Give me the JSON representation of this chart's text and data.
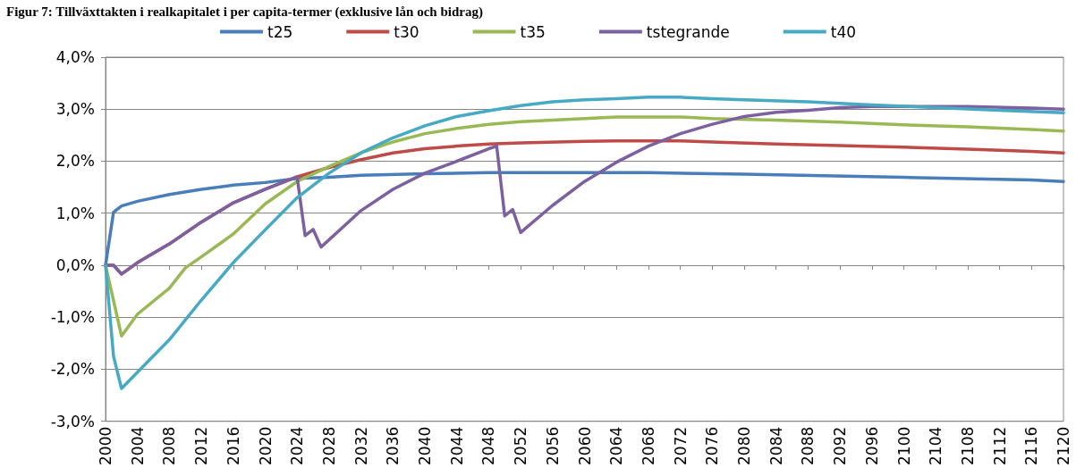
{
  "chart_data": {
    "type": "line",
    "title": "Figur 7: Tillväxttakten i realkapitalet i per capita-termer (exklusive lån och bidrag)",
    "xlim": [
      2000,
      2120
    ],
    "xticks": [
      2000,
      2004,
      2008,
      2012,
      2016,
      2020,
      2024,
      2028,
      2032,
      2036,
      2040,
      2044,
      2048,
      2052,
      2056,
      2060,
      2064,
      2068,
      2072,
      2076,
      2080,
      2084,
      2088,
      2092,
      2096,
      2100,
      2104,
      2108,
      2112,
      2116,
      2120
    ],
    "ylim": [
      -3,
      4
    ],
    "yticks": [
      {
        "value": -3,
        "label": "-3,0%"
      },
      {
        "value": -2,
        "label": "-2,0%"
      },
      {
        "value": -1,
        "label": "-1,0%"
      },
      {
        "value": 0,
        "label": "0,0%"
      },
      {
        "value": 1,
        "label": "1,0%"
      },
      {
        "value": 2,
        "label": "2,0%"
      },
      {
        "value": 3,
        "label": "3,0%"
      },
      {
        "value": 4,
        "label": "4,0%"
      }
    ],
    "grid": "y",
    "legend": "top",
    "marker": "none",
    "line_style": "solid",
    "series": [
      {
        "name": "t25",
        "color": "#4a7ebb",
        "x": [
          2000,
          2001,
          2002,
          2004,
          2008,
          2012,
          2016,
          2020,
          2024,
          2028,
          2032,
          2040,
          2048,
          2068,
          2080,
          2100,
          2116,
          2120
        ],
        "values": [
          0,
          1.02,
          1.14,
          1.23,
          1.36,
          1.46,
          1.54,
          1.59,
          1.67,
          1.69,
          1.73,
          1.76,
          1.78,
          1.78,
          1.75,
          1.69,
          1.64,
          1.61
        ]
      },
      {
        "name": "t30",
        "color": "#be4b48",
        "x": [
          2000,
          2001,
          2002,
          2004,
          2008,
          2012,
          2016,
          2020,
          2024,
          2028,
          2032,
          2036,
          2040,
          2044,
          2048,
          2052,
          2060,
          2064,
          2072,
          2076,
          2084,
          2092,
          2100,
          2108,
          2116,
          2120
        ],
        "values": [
          0,
          0,
          -0.17,
          0.05,
          0.41,
          0.83,
          1.2,
          1.46,
          1.7,
          1.88,
          2.03,
          2.16,
          2.24,
          2.29,
          2.33,
          2.35,
          2.38,
          2.39,
          2.39,
          2.37,
          2.33,
          2.3,
          2.27,
          2.23,
          2.19,
          2.16
        ]
      },
      {
        "name": "t35",
        "color": "#98b954",
        "x": [
          2000,
          2002,
          2004,
          2008,
          2010,
          2012,
          2016,
          2020,
          2024,
          2028,
          2032,
          2036,
          2040,
          2044,
          2048,
          2052,
          2056,
          2060,
          2064,
          2072,
          2076,
          2084,
          2092,
          2100,
          2108,
          2116,
          2120
        ],
        "values": [
          0,
          -1.36,
          -0.94,
          -0.44,
          -0.05,
          0.16,
          0.6,
          1.18,
          1.61,
          1.9,
          2.16,
          2.37,
          2.53,
          2.63,
          2.71,
          2.76,
          2.79,
          2.82,
          2.85,
          2.85,
          2.82,
          2.79,
          2.75,
          2.7,
          2.66,
          2.61,
          2.58
        ]
      },
      {
        "name": "tstegrande",
        "color": "#7d60a0",
        "x": [
          2000,
          2001,
          2002,
          2004,
          2008,
          2012,
          2016,
          2020,
          2024,
          2025,
          2026,
          2027,
          2032,
          2036,
          2040,
          2044,
          2048,
          2049,
          2050,
          2051,
          2052,
          2056,
          2060,
          2064,
          2068,
          2072,
          2076,
          2080,
          2084,
          2088,
          2092,
          2096,
          2108,
          2116,
          2120
        ],
        "values": [
          0,
          0,
          -0.17,
          0.05,
          0.41,
          0.83,
          1.2,
          1.46,
          1.7,
          0.57,
          0.69,
          0.35,
          1.05,
          1.46,
          1.77,
          2.0,
          2.24,
          2.29,
          0.95,
          1.07,
          0.63,
          1.15,
          1.61,
          1.98,
          2.29,
          2.53,
          2.71,
          2.86,
          2.94,
          2.98,
          3.03,
          3.05,
          3.05,
          3.02,
          3.0
        ]
      },
      {
        "name": "t40",
        "color": "#46aac5",
        "x": [
          2000,
          2001,
          2002,
          2008,
          2012,
          2016,
          2020,
          2024,
          2028,
          2032,
          2036,
          2040,
          2044,
          2048,
          2052,
          2056,
          2060,
          2064,
          2068,
          2072,
          2076,
          2080,
          2088,
          2096,
          2104,
          2112,
          2120
        ],
        "values": [
          0,
          -1.75,
          -2.37,
          -1.43,
          -0.67,
          0.05,
          0.68,
          1.3,
          1.77,
          2.16,
          2.45,
          2.68,
          2.86,
          2.97,
          3.07,
          3.14,
          3.18,
          3.2,
          3.23,
          3.23,
          3.2,
          3.18,
          3.14,
          3.08,
          3.03,
          2.98,
          2.93
        ]
      }
    ]
  }
}
